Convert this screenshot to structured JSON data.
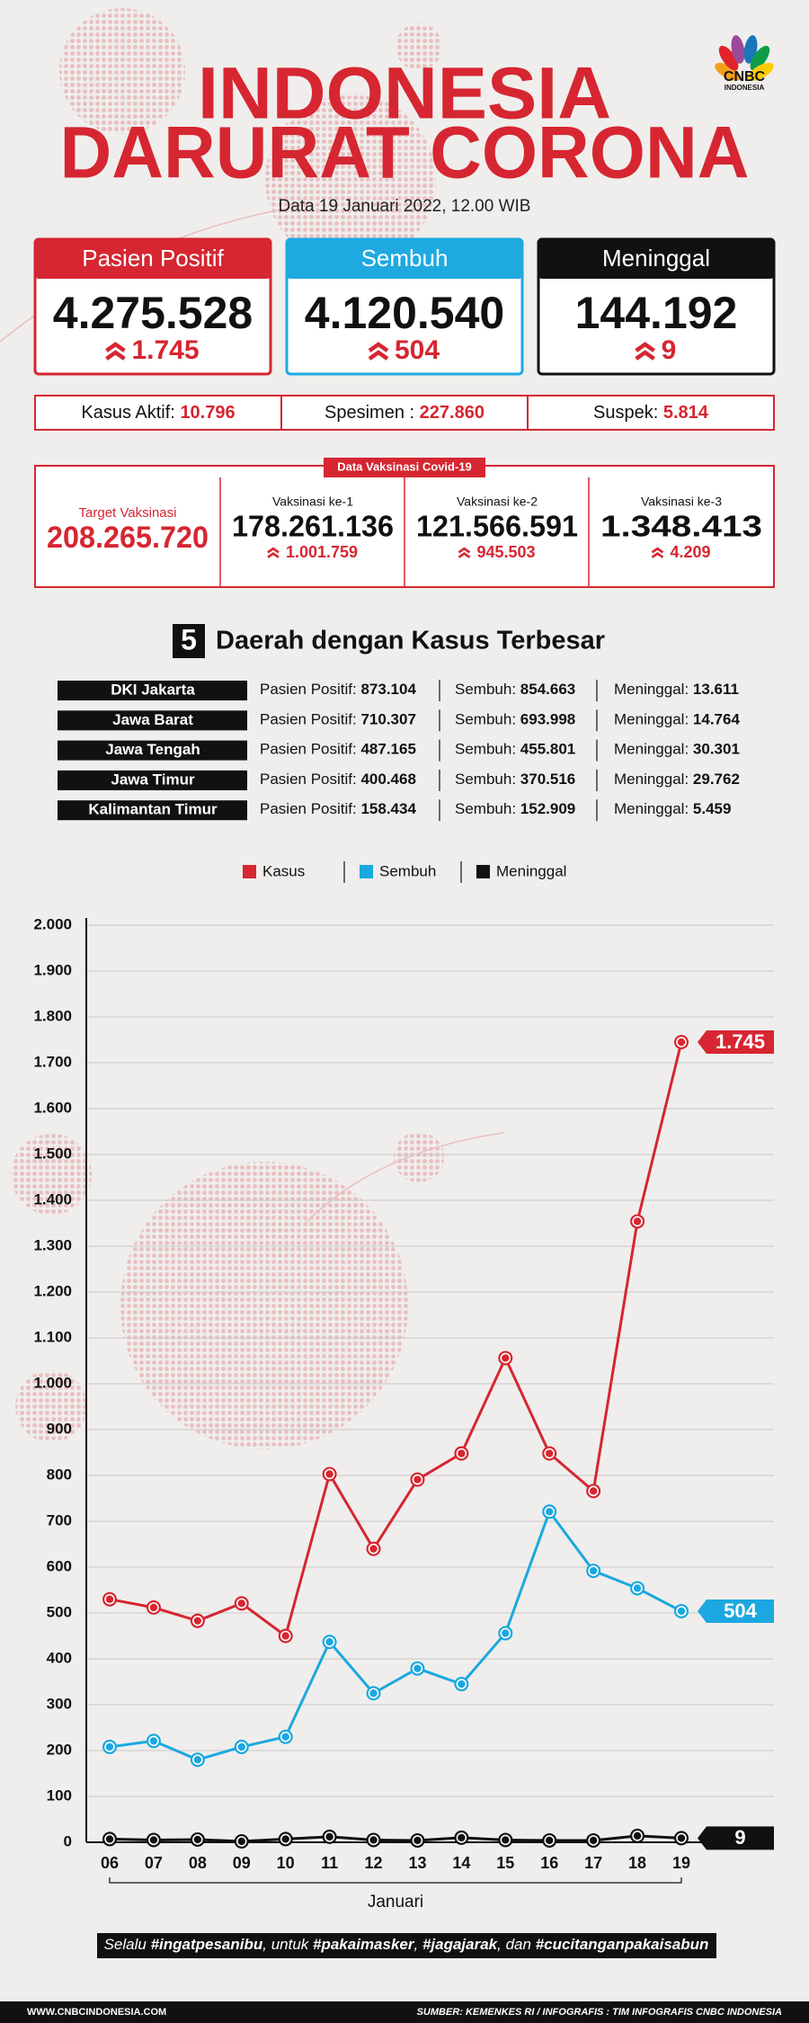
{
  "header": {
    "title_line1": "INDONESIA",
    "title_line2": "DARURAT CORONA",
    "date": "Data 19 Januari 2022, 12.00 WIB",
    "logo": "CNBC",
    "logo_sub": "INDONESIA"
  },
  "cards": [
    {
      "label": "Pasien Positif",
      "value": "4.275.528",
      "delta": "1.745"
    },
    {
      "label": "Sembuh",
      "value": "4.120.540",
      "delta": "504"
    },
    {
      "label": "Meninggal",
      "value": "144.192",
      "delta": "9"
    }
  ],
  "summary": [
    {
      "label": "Kasus Aktif:",
      "value": "10.796"
    },
    {
      "label": "Spesimen :",
      "value": "227.860"
    },
    {
      "label": "Suspek:",
      "value": "5.814"
    }
  ],
  "vaccination": {
    "title": "Data Vaksinasi Covid-19",
    "target_label": "Target Vaksinasi",
    "target": "208.265.720",
    "doses": [
      {
        "label": "Vaksinasi ke-1",
        "value": "178.261.136",
        "delta": "1.001.759"
      },
      {
        "label": "Vaksinasi ke-2",
        "value": "121.566.591",
        "delta": "945.503"
      },
      {
        "label": "Vaksinasi ke-3",
        "value": "1.348.413",
        "delta": "4.209"
      }
    ]
  },
  "regions": {
    "number": "5",
    "title": "Daerah dengan Kasus Terbesar",
    "rows": [
      {
        "name": "DKI Jakarta",
        "positif_label": "Pasien Positif:",
        "positif": "873.104",
        "sembuh_label": "Sembuh:",
        "sembuh": "854.663",
        "meninggal_label": "Meninggal:",
        "meninggal": "13.611"
      },
      {
        "name": "Jawa Barat",
        "positif_label": "Pasien Positif:",
        "positif": "710.307",
        "sembuh_label": "Sembuh:",
        "sembuh": "693.998",
        "meninggal_label": "Meninggal:",
        "meninggal": "14.764"
      },
      {
        "name": "Jawa Tengah",
        "positif_label": "Pasien Positif:",
        "positif": "487.165",
        "sembuh_label": "Sembuh:",
        "sembuh": "455.801",
        "meninggal_label": "Meninggal:",
        "meninggal": "30.301"
      },
      {
        "name": "Jawa Timur",
        "positif_label": "Pasien Positif:",
        "positif": "400.468",
        "sembuh_label": "Sembuh:",
        "sembuh": "370.516",
        "meninggal_label": "Meninggal:",
        "meninggal": "29.762"
      },
      {
        "name": "Kalimantan Timur",
        "positif_label": "Pasien Positif:",
        "positif": "158.434",
        "sembuh_label": "Sembuh:",
        "sembuh": "152.909",
        "meninggal_label": "Meninggal:",
        "meninggal": "5.459"
      }
    ]
  },
  "chart_data": {
    "type": "line",
    "x_label": "Januari",
    "categories": [
      "06",
      "07",
      "08",
      "09",
      "10",
      "11",
      "12",
      "13",
      "14",
      "15",
      "16",
      "17",
      "18",
      "19"
    ],
    "series": [
      {
        "name": "Kasus",
        "color": "#d62631",
        "values": [
          530,
          512,
          483,
          521,
          450,
          803,
          640,
          791,
          848,
          1056,
          848,
          766,
          1354,
          1745
        ],
        "value_labels": [
          null,
          null,
          null,
          null,
          null,
          null,
          null,
          null,
          null,
          null,
          null,
          null,
          null,
          "1.745"
        ]
      },
      {
        "name": "Sembuh",
        "color": "#1ba8e0",
        "values": [
          208,
          221,
          180,
          208,
          230,
          437,
          325,
          379,
          345,
          456,
          721,
          592,
          554,
          504
        ],
        "value_labels": [
          null,
          null,
          null,
          null,
          null,
          null,
          null,
          null,
          null,
          null,
          null,
          null,
          null,
          "504"
        ]
      },
      {
        "name": "Meninggal",
        "color": "#111111",
        "values": [
          7,
          5,
          6,
          2,
          7,
          12,
          5,
          4,
          10,
          5,
          4,
          4,
          14,
          9
        ],
        "value_labels": [
          null,
          null,
          null,
          null,
          null,
          null,
          null,
          null,
          null,
          null,
          null,
          null,
          null,
          "9"
        ]
      }
    ],
    "ylim": [
      0,
      2000
    ],
    "yticks": [
      0,
      100,
      200,
      300,
      400,
      500,
      600,
      700,
      800,
      900,
      {
        "value": 1000,
        "label": "1.000"
      },
      {
        "value": 1100,
        "label": "1.100"
      },
      {
        "value": 1200,
        "label": "1.200"
      },
      {
        "value": 1300,
        "label": "1.300"
      },
      {
        "value": 1400,
        "label": "1.400"
      },
      {
        "value": 1500,
        "label": "1.500"
      },
      {
        "value": 1600,
        "label": "1.600"
      },
      {
        "value": 1700,
        "label": "1.700"
      },
      {
        "value": 1800,
        "label": "1.800"
      },
      {
        "value": 1900,
        "label": "1.900"
      },
      {
        "value": 2000,
        "label": "2.000"
      }
    ],
    "grid": true,
    "legend": "top"
  },
  "footer": {
    "slogan": [
      "Selalu ",
      "#ingatpesanibu",
      ", untuk ",
      "#pakaimasker",
      ", ",
      "#jagajarak",
      ", dan ",
      "#cucitanganpakaisabun"
    ],
    "site": "WWW.CNBCINDONESIA.COM",
    "source": "SUMBER: KEMENKES RI / INFOGRAFIS : TIM INFOGRAFIS CNBC INDONESIA"
  }
}
